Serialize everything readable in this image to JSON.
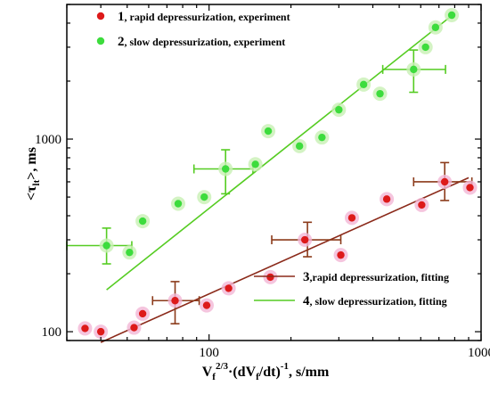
{
  "chart_data": {
    "type": "scatter",
    "title": "",
    "xlabel": "V_f^{2/3}·(dV_f/dt)^{-1}, s/mm",
    "ylabel": "<τ_lt>, ms",
    "xscale": "log",
    "yscale": "log",
    "xlim": [
      30,
      1000
    ],
    "ylim": [
      90,
      5000
    ],
    "xticks": [
      "100",
      "1000"
    ],
    "yticks": [
      "100",
      "1000"
    ],
    "grid": false,
    "legend_position": "top-left and bottom-right",
    "colors": {
      "experiment_1": "#dd1a1a",
      "experiment_2": "#3ddc3d",
      "fit_3": "#8b2a1a",
      "fit_4": "#55cc22",
      "marker_halo_red": "#f3b6d6",
      "marker_halo_green": "#c8f0b4",
      "errorbar_red": "#8b3a1a",
      "errorbar_green": "#55cc22"
    },
    "series": [
      {
        "id": "1",
        "name": "rapid depressurization, experiment",
        "kind": "scatter",
        "color": "#dd1a1a",
        "halo": "#f3b6d6",
        "points": [
          [
            35,
            104
          ],
          [
            40,
            100
          ],
          [
            53,
            105
          ],
          [
            57,
            124
          ],
          [
            75,
            145
          ],
          [
            98,
            137
          ],
          [
            118,
            168
          ],
          [
            168,
            192
          ],
          [
            225,
            300
          ],
          [
            305,
            250
          ],
          [
            335,
            390
          ],
          [
            450,
            488
          ],
          [
            605,
            455
          ],
          [
            735,
            600
          ],
          [
            910,
            560
          ]
        ]
      },
      {
        "id": "2",
        "name": "slow depressurization, experiment",
        "kind": "scatter",
        "color": "#3ddc3d",
        "halo": "#c8f0b4",
        "points": [
          [
            42,
            280
          ],
          [
            51,
            258
          ],
          [
            57,
            375
          ],
          [
            77,
            462
          ],
          [
            96,
            500
          ],
          [
            115,
            700
          ],
          [
            148,
            740
          ],
          [
            165,
            1100
          ],
          [
            215,
            920
          ],
          [
            260,
            1020
          ],
          [
            300,
            1420
          ],
          [
            370,
            1920
          ],
          [
            425,
            1720
          ],
          [
            565,
            2300
          ],
          [
            625,
            3000
          ],
          [
            680,
            3800
          ],
          [
            780,
            4400
          ]
        ]
      },
      {
        "id": "3",
        "name": "rapid depressurization, fitting",
        "kind": "line",
        "color": "#8b2a1a",
        "points": [
          [
            40,
            88
          ],
          [
            900,
            630
          ]
        ]
      },
      {
        "id": "4",
        "name": "slow depressurization, fitting",
        "kind": "line",
        "color": "#55cc22",
        "points": [
          [
            42,
            165
          ],
          [
            800,
            4500
          ]
        ]
      }
    ],
    "error_bars": [
      {
        "series": "1",
        "x": 75,
        "y": 145,
        "xerr": [
          62,
          92
        ],
        "yerr": [
          110,
          182
        ]
      },
      {
        "series": "1",
        "x": 230,
        "y": 300,
        "xerr": [
          170,
          305
        ],
        "yerr": [
          245,
          370
        ]
      },
      {
        "series": "1",
        "x": 735,
        "y": 600,
        "xerr": [
          565,
          925
        ],
        "yerr": [
          480,
          755
        ]
      },
      {
        "series": "2",
        "x": 42,
        "y": 280,
        "xerr": [
          30,
          52
        ],
        "yerr": [
          225,
          345
        ]
      },
      {
        "series": "2",
        "x": 115,
        "y": 700,
        "xerr": [
          88,
          145
        ],
        "yerr": [
          520,
          880
        ]
      },
      {
        "series": "2",
        "x": 565,
        "y": 2300,
        "xerr": [
          435,
          740
        ],
        "yerr": [
          1750,
          2900
        ]
      }
    ],
    "legend": [
      {
        "num": "1",
        "label": ", rapid depressurization, experiment",
        "kind": "marker",
        "color": "#dd1a1a"
      },
      {
        "num": "2",
        "label": ", slow depressurization, experiment",
        "kind": "marker",
        "color": "#3ddc3d"
      },
      {
        "num": "3",
        "label": ",rapid depressurization, fitting",
        "kind": "line",
        "color": "#8b2a1a"
      },
      {
        "num": "4",
        "label": ", slow depressurization, fitting",
        "kind": "line",
        "color": "#55cc22"
      }
    ]
  }
}
